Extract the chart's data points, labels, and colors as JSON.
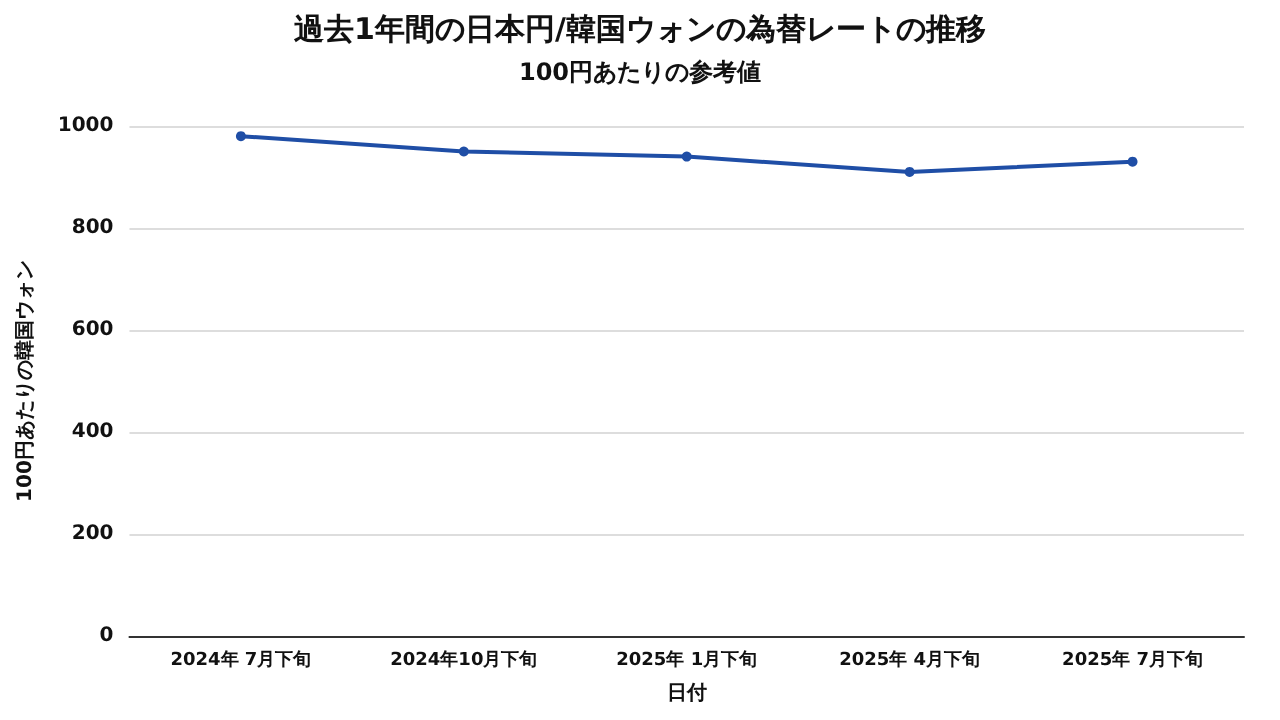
{
  "chart_data": {
    "type": "line",
    "title": "過去1年間の日本円/韓国ウォンの為替レートの推移",
    "subtitle": "100円あたりの参考値",
    "xlabel": "日付",
    "ylabel": "100円あたりの韓国ウォン",
    "categories": [
      "2024年 7月下旬",
      "2024年10月下旬",
      "2025年 1月下旬",
      "2025年 4月下旬",
      "2025年 7月下旬"
    ],
    "series": [
      {
        "color": "#1f4ea6",
        "values": [
          980,
          950,
          940,
          910,
          930
        ]
      }
    ],
    "ylim": [
      0,
      1000
    ],
    "yticks": [
      0,
      200,
      400,
      600,
      800,
      1000
    ],
    "grid": "y",
    "marker": "circle",
    "line_style": "solid"
  }
}
